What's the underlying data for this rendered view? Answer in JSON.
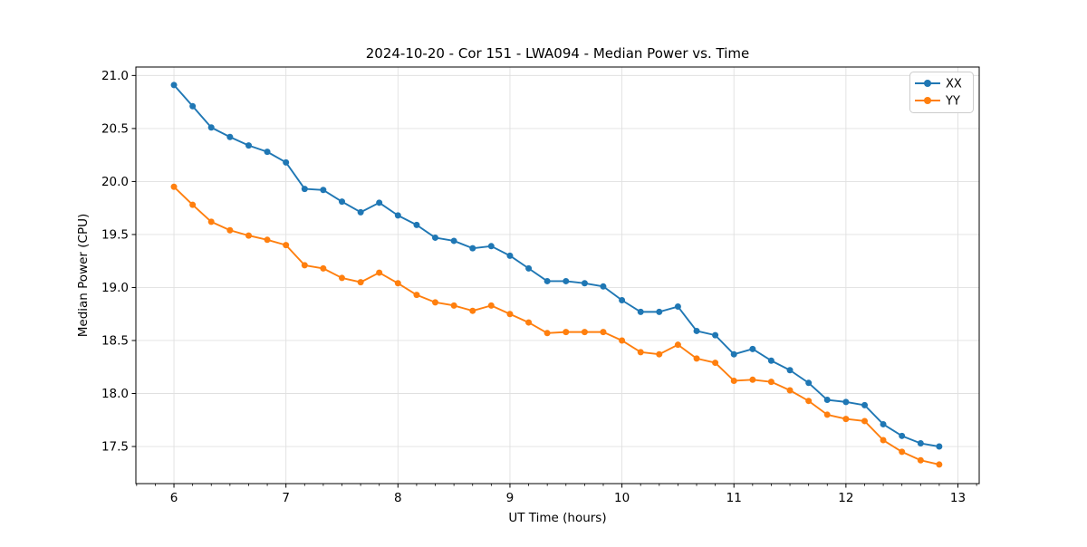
{
  "figure": {
    "background": "#ffffff",
    "text_color": "#000000",
    "grid_color": "#e0e0e0",
    "legend_border_color": "#cccccc"
  },
  "chart_data": {
    "type": "line",
    "title": "2024-10-20 - Cor 151 - LWA094 - Median Power vs. Time",
    "xlabel": "UT Time (hours)",
    "ylabel": "Median Power (CPU)",
    "xlim": [
      5.66,
      13.19
    ],
    "ylim": [
      17.15,
      21.08
    ],
    "grid": true,
    "legend_position": "upper right",
    "x_ticks": [
      6,
      7,
      8,
      9,
      10,
      11,
      12,
      13
    ],
    "x_tick_labels": [
      "6",
      "7",
      "8",
      "9",
      "10",
      "11",
      "12",
      "13"
    ],
    "y_ticks": [
      17.5,
      18.0,
      18.5,
      19.0,
      19.5,
      20.0,
      20.5,
      21.0
    ],
    "y_tick_labels": [
      "17.5",
      "18.0",
      "18.5",
      "19.0",
      "19.5",
      "20.0",
      "20.5",
      "21.0"
    ],
    "x_minor_tick_step": 0.16667,
    "x": [
      6.0,
      6.167,
      6.333,
      6.5,
      6.667,
      6.833,
      7.0,
      7.167,
      7.333,
      7.5,
      7.667,
      7.833,
      8.0,
      8.167,
      8.333,
      8.5,
      8.667,
      8.833,
      9.0,
      9.167,
      9.333,
      9.5,
      9.667,
      9.833,
      10.0,
      10.167,
      10.333,
      10.5,
      10.667,
      10.833,
      11.0,
      11.167,
      11.333,
      11.5,
      11.667,
      11.833,
      12.0,
      12.167,
      12.333,
      12.5,
      12.667,
      12.833
    ],
    "series": [
      {
        "name": "XX",
        "color": "#1f77b4",
        "values": [
          20.91,
          20.71,
          20.51,
          20.42,
          20.34,
          20.28,
          20.18,
          19.93,
          19.92,
          19.81,
          19.71,
          19.8,
          19.68,
          19.59,
          19.47,
          19.44,
          19.37,
          19.39,
          19.3,
          19.18,
          19.06,
          19.06,
          19.04,
          19.01,
          18.88,
          18.77,
          18.77,
          18.82,
          18.59,
          18.55,
          18.37,
          18.42,
          18.31,
          18.22,
          18.1,
          17.94,
          17.92,
          17.89,
          17.71,
          17.6,
          17.53,
          17.5
        ]
      },
      {
        "name": "YY",
        "color": "#ff7f0e",
        "values": [
          19.95,
          19.78,
          19.62,
          19.54,
          19.49,
          19.45,
          19.4,
          19.21,
          19.18,
          19.09,
          19.05,
          19.14,
          19.04,
          18.93,
          18.86,
          18.83,
          18.78,
          18.83,
          18.75,
          18.67,
          18.57,
          18.58,
          18.58,
          18.58,
          18.5,
          18.39,
          18.37,
          18.46,
          18.33,
          18.29,
          18.12,
          18.13,
          18.11,
          18.03,
          17.93,
          17.8,
          17.76,
          17.74,
          17.56,
          17.45,
          17.37,
          17.33
        ]
      }
    ]
  }
}
